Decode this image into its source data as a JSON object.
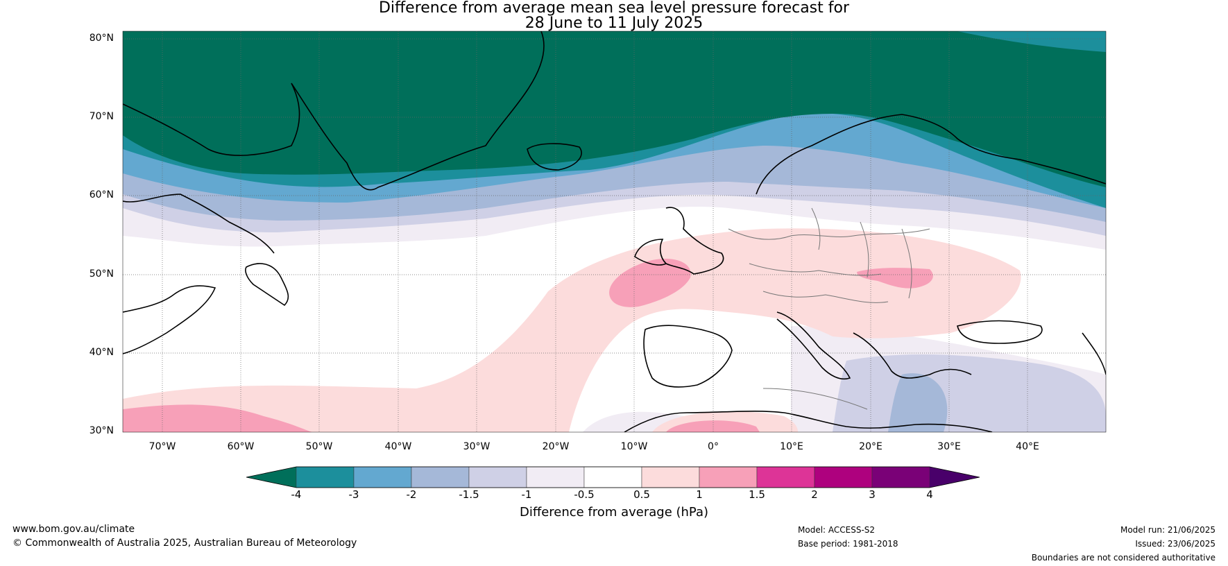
{
  "title": {
    "line1": "Difference from average mean sea level pressure forecast for",
    "line2": "28 June to 11 July 2025"
  },
  "map": {
    "projection": "equirectangular",
    "lon_range": [
      -75,
      50
    ],
    "lat_range": [
      30,
      81
    ],
    "lat_ticks": [
      "80°N",
      "70°N",
      "60°N",
      "50°N",
      "40°N",
      "30°N"
    ],
    "lon_ticks": [
      "70°W",
      "60°W",
      "50°W",
      "40°W",
      "30°W",
      "20°W",
      "10°W",
      "0°",
      "10°E",
      "20°E",
      "30°E",
      "40°E"
    ]
  },
  "colorbar": {
    "levels": [
      "-4",
      "-3",
      "-2",
      "-1.5",
      "-1",
      "-0.5",
      "0.5",
      "1",
      "1.5",
      "2",
      "3",
      "4"
    ],
    "colors": [
      "#006f5a",
      "#1c8f9c",
      "#63a8d0",
      "#a5b8d8",
      "#cfd0e6",
      "#f1ecf4",
      "#ffffff",
      "#fcdcdc",
      "#f7a0b8",
      "#dd3497",
      "#ae017e",
      "#7a0177",
      "#49006a"
    ],
    "label": "Difference from average (hPa)"
  },
  "footer": {
    "url": "www.bom.gov.au/climate",
    "copyright": "© Commonwealth of Australia 2025, Australian Bureau of Meteorology",
    "model": "Model: ACCESS-S2",
    "base_period": "Base period: 1981-2018",
    "model_run": "Model run: 21/06/2025",
    "issued": "Issued: 23/06/2025",
    "disclaimer": "Boundaries are not considered authoritative"
  }
}
